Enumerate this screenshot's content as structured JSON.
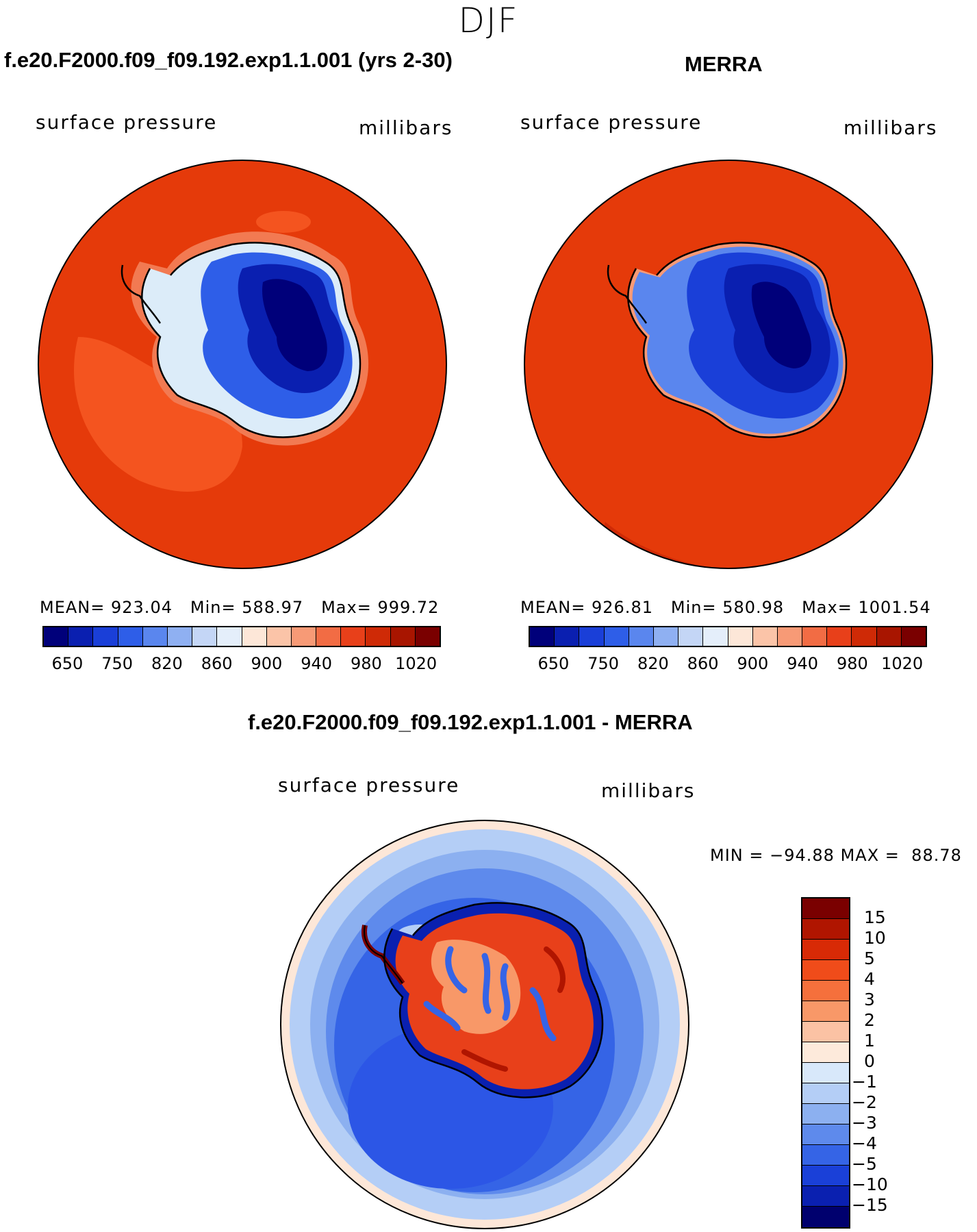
{
  "season": "DJF",
  "panels": [
    {
      "title": "f.e20.F2000.f09_f09.192.exp1.1.001 (yrs 2-30)",
      "variable": "surface pressure",
      "units": "millibars",
      "stats": {
        "mean_label": "MEAN=",
        "mean": "923.04",
        "min_label": "Min=",
        "min": "588.97",
        "max_label": "Max=",
        "max": "999.72"
      }
    },
    {
      "title": "MERRA",
      "variable": "surface pressure",
      "units": "millibars",
      "stats": {
        "mean_label": "MEAN=",
        "mean": "926.81",
        "min_label": "Min=",
        "min": "580.98",
        "max_label": "Max=",
        "max": "1001.54"
      }
    }
  ],
  "abs_colorbar": {
    "tick_labels": [
      "650",
      "750",
      "820",
      "860",
      "900",
      "940",
      "980",
      "1020"
    ],
    "colors": [
      "#00007a",
      "#0a1fb0",
      "#1a3fd8",
      "#2e5ee8",
      "#5a86ee",
      "#8fb0f2",
      "#c4d6f6",
      "#e4eefa",
      "#fde7d8",
      "#fbc4a8",
      "#f79a76",
      "#f26c44",
      "#e8401a",
      "#cf2a06",
      "#a81500",
      "#7a0000"
    ]
  },
  "diff_panel": {
    "title": "f.e20.F2000.f09_f09.192.exp1.1.001 - MERRA",
    "variable": "surface pressure",
    "units": "millibars",
    "minmax": {
      "min_label": "MIN =",
      "min": "−94.88",
      "max_label": "MAX =",
      "max": "88.78"
    },
    "colorbar_labels": [
      "15",
      "10",
      "5",
      "4",
      "3",
      "2",
      "1",
      "0",
      "−1",
      "−2",
      "−3",
      "−4",
      "−5",
      "−10",
      "−15"
    ],
    "colorbar_colors": [
      "#7a0000",
      "#b01500",
      "#d82a06",
      "#f04c1a",
      "#f5703c",
      "#f89868",
      "#fbc2a4",
      "#fdeadb",
      "#d8e8fa",
      "#b4cef6",
      "#8cb0f0",
      "#5e8aec",
      "#3564e6",
      "#1a40d8",
      "#0a20b0",
      "#00006e"
    ]
  },
  "map_colors": {
    "ocean_red": "#e53a0a",
    "ocean_light_red": "#f4541f",
    "diff_ocean": "#2c56e6",
    "diff_ocean_outer": "#9fc0f6",
    "coast": "#000000"
  }
}
